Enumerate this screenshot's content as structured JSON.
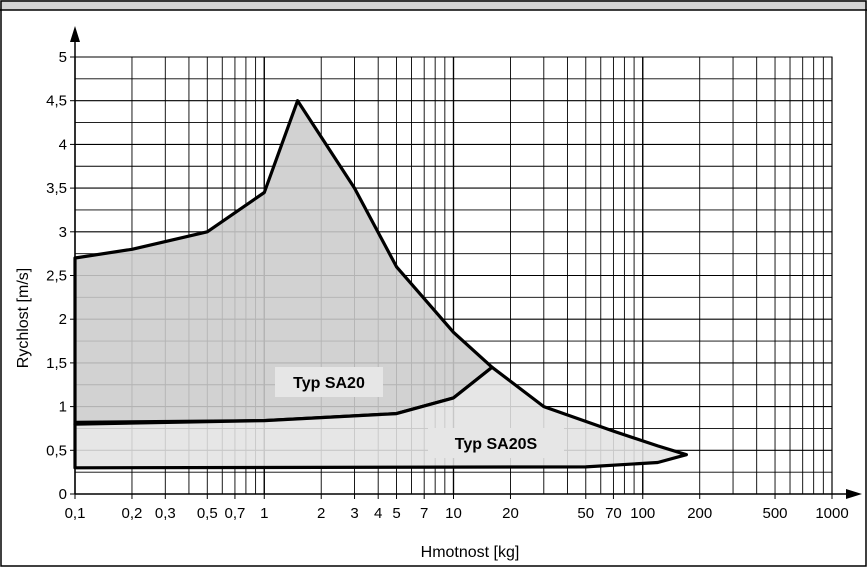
{
  "chart_data": {
    "type": "area",
    "xscale": "log",
    "xlim": [
      0.1,
      1000
    ],
    "ylim": [
      0,
      5
    ],
    "xlabel": "Hmotnost [kg]",
    "ylabel": "Rychlost [m/s]",
    "xticks": [
      "0,1",
      "0,2",
      "0,3",
      "0,5",
      "0,7",
      "1",
      "2",
      "3",
      "4",
      "5",
      "7",
      "10",
      "20",
      "50",
      "70",
      "100",
      "200",
      "500",
      "1000"
    ],
    "yticks": [
      "0",
      "0,5",
      "1",
      "1,5",
      "2",
      "2,5",
      "3",
      "3,5",
      "4",
      "4,5",
      "5"
    ],
    "grid": true,
    "colors": {
      "sa20": "#cccccc",
      "sa20s": "#e3e3e3",
      "outline": "#000000",
      "header": "#d4d4d4"
    },
    "series": [
      {
        "name": "Typ SA20",
        "points": [
          [
            0.1,
            0.8
          ],
          [
            0.1,
            2.7
          ],
          [
            0.2,
            2.8
          ],
          [
            0.5,
            3.0
          ],
          [
            1.0,
            3.45
          ],
          [
            1.5,
            4.5
          ],
          [
            3,
            3.5
          ],
          [
            5,
            2.6
          ],
          [
            10,
            1.85
          ],
          [
            16,
            1.45
          ],
          [
            10,
            1.1
          ],
          [
            5,
            0.92
          ],
          [
            1,
            0.84
          ],
          [
            0.1,
            0.82
          ]
        ]
      },
      {
        "name": "Typ SA20S",
        "points": [
          [
            0.1,
            0.3
          ],
          [
            0.1,
            0.8
          ],
          [
            1,
            0.84
          ],
          [
            5,
            0.92
          ],
          [
            10,
            1.1
          ],
          [
            16,
            1.45
          ],
          [
            30,
            1.0
          ],
          [
            70,
            0.72
          ],
          [
            120,
            0.55
          ],
          [
            170,
            0.45
          ],
          [
            120,
            0.36
          ],
          [
            50,
            0.31
          ],
          [
            0.1,
            0.3
          ]
        ]
      }
    ]
  }
}
